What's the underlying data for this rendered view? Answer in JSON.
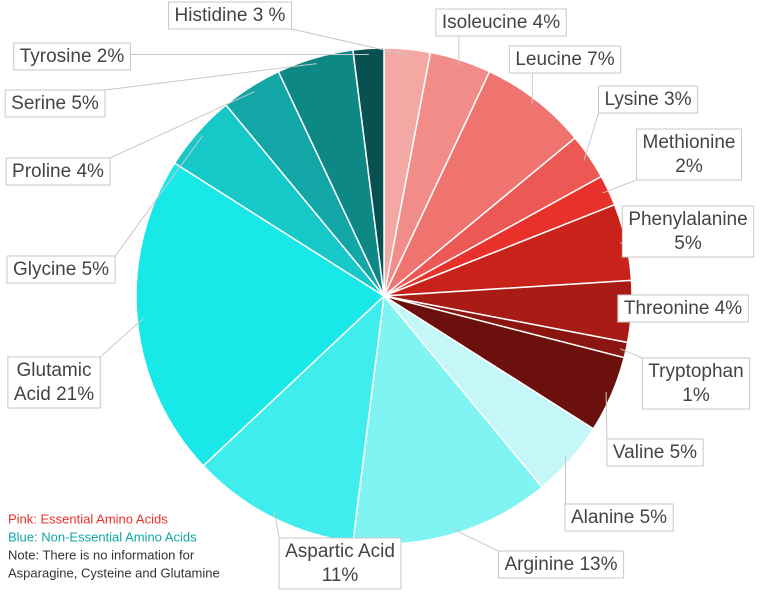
{
  "chart_data": {
    "type": "pie",
    "categories": [
      "Histidine",
      "Isoleucine",
      "Leucine",
      "Lysine",
      "Methionine",
      "Phenylalanine",
      "Threonine",
      "Tryptophan",
      "Valine",
      "Alanine",
      "Arginine",
      "Aspartic Acid",
      "Glutamic Acid",
      "Glycine",
      "Proline",
      "Serine",
      "Tyrosine"
    ],
    "values": [
      3,
      4,
      7,
      3,
      2,
      5,
      4,
      1,
      5,
      5,
      13,
      11,
      21,
      5,
      4,
      5,
      2
    ],
    "labels": [
      [
        "Histidine 3 %"
      ],
      [
        "Isoleucine 4%"
      ],
      [
        "Leucine 7%"
      ],
      [
        "Lysine 3%"
      ],
      [
        "Methionine",
        "2%"
      ],
      [
        "Phenylalanine",
        "5%"
      ],
      [
        "Threonine 4%"
      ],
      [
        "Tryptophan",
        "1%"
      ],
      [
        "Valine 5%"
      ],
      [
        "Alanine 5%"
      ],
      [
        "Arginine 13%"
      ],
      [
        "Aspartic Acid",
        "11%"
      ],
      [
        "Glutamic",
        "Acid 21%"
      ],
      [
        "Glycine 5%"
      ],
      [
        "Proline 4%"
      ],
      [
        "Serine 5%"
      ],
      [
        "Tyrosine 2%"
      ]
    ],
    "colors": [
      "#f4a8a4",
      "#f28c89",
      "#ef7470",
      "#ec5955",
      "#e8312a",
      "#c8221b",
      "#a91b15",
      "#8b1510",
      "#6b100c",
      "#c5f7f8",
      "#80f3f3",
      "#3feded",
      "#18e8e8",
      "#17c8c8",
      "#12a6a6",
      "#0d8884",
      "#075250"
    ],
    "notes": [
      "Pink: Essential Amino Acids",
      "Blue: Non-Essential Amino Acids",
      "Note: There is no information for",
      "Asparagine, Cysteine and Glutamine"
    ],
    "note_colors": [
      "#e8312a",
      "#12a6a6",
      "#333333",
      "#333333"
    ]
  }
}
